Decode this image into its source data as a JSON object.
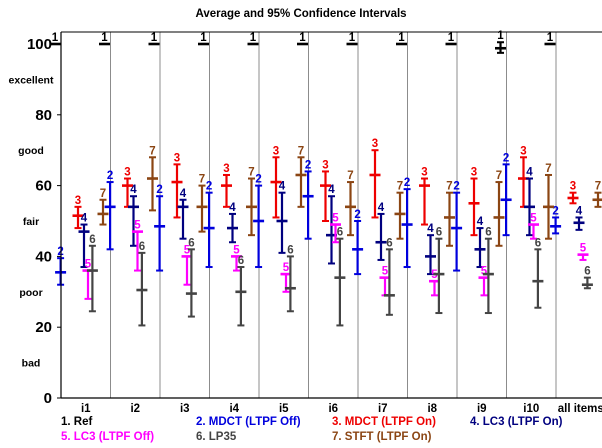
{
  "chart_data": {
    "type": "errorbar",
    "title": "Average and 95% Confidence Intervals",
    "xlabel": "",
    "ylabel": "",
    "ylim": [
      0,
      105
    ],
    "yticks": [
      0,
      20,
      40,
      60,
      80,
      100
    ],
    "quality_labels": [
      {
        "value": 10,
        "label": "bad"
      },
      {
        "value": 30,
        "label": "poor"
      },
      {
        "value": 50,
        "label": "fair"
      },
      {
        "value": 70,
        "label": "good"
      },
      {
        "value": 90,
        "label": "excellent"
      }
    ],
    "categories": [
      "i1",
      "i2",
      "i3",
      "i4",
      "i5",
      "i6",
      "i7",
      "i8",
      "i9",
      "i10",
      "all items"
    ],
    "grid": true,
    "legend_position": "bottom",
    "series": [
      {
        "id": "1",
        "name": "Ref",
        "color": "#000000",
        "mean": [
          100,
          100,
          100,
          100,
          100,
          100,
          100,
          100,
          100,
          98.8,
          100
        ],
        "lower": [
          100,
          100,
          100,
          100,
          100,
          100,
          100,
          100,
          100,
          97.5,
          100
        ],
        "upper": [
          100,
          100,
          100,
          100,
          100,
          100,
          100,
          100,
          100,
          100.5,
          100
        ]
      },
      {
        "id": "2",
        "name": "MDCT (LTPF Off)",
        "color": "#0000dd",
        "mean": [
          35.5,
          54,
          48.5,
          48,
          50,
          57,
          42,
          49,
          48,
          56,
          48.5
        ],
        "lower": [
          32,
          42,
          36,
          37,
          37,
          45,
          35,
          37,
          36,
          46,
          46.5
        ],
        "upper": [
          39.5,
          61,
          57,
          58,
          60,
          64,
          50,
          59,
          58,
          66,
          51
        ]
      },
      {
        "id": "3",
        "name": "MDCT (LTPF On)",
        "color": "#ee0000",
        "mean": [
          51.5,
          60,
          61,
          60,
          61,
          60,
          63,
          60,
          55,
          62,
          56.5
        ],
        "lower": [
          48,
          54,
          51,
          54,
          51,
          50,
          51,
          49,
          46,
          54,
          55
        ],
        "upper": [
          54,
          62,
          66,
          63,
          68,
          64,
          70,
          62,
          62,
          68,
          58
        ]
      },
      {
        "id": "4",
        "name": "LC3 (LTPF On)",
        "color": "#00007f",
        "mean": [
          47,
          54,
          54,
          48,
          50,
          46,
          44,
          40,
          42,
          54,
          49.5
        ],
        "lower": [
          37,
          43,
          45,
          44,
          41,
          38,
          39,
          35,
          37,
          46,
          47.5
        ],
        "upper": [
          49,
          57,
          56,
          52,
          58,
          57,
          52,
          46,
          48,
          62,
          51
        ]
      },
      {
        "id": "5",
        "name": "LC3 (LTPF Off)",
        "color": "#ff00ff",
        "mean": [
          36,
          47,
          40,
          40,
          35,
          49,
          34,
          33,
          34,
          49,
          40.5
        ],
        "lower": [
          28,
          36,
          32,
          36,
          30,
          44,
          29,
          29,
          29,
          45,
          39
        ]
      },
      {
        "id": "6",
        "name": "LP35",
        "color": "#444444",
        "mean": [
          36,
          30.5,
          29.5,
          30,
          31,
          34,
          29,
          35,
          35,
          33,
          32
        ],
        "lower": [
          24.5,
          20.5,
          23,
          20.5,
          24.5,
          20.5,
          23.5,
          24,
          24,
          25.5,
          31
        ],
        "upper": [
          43,
          41,
          42,
          37,
          40,
          45,
          42,
          45,
          45,
          42,
          34
        ]
      },
      {
        "id": "7",
        "name": "STFT (LTPF On)",
        "color": "#8b4513",
        "mean": [
          52,
          62,
          54,
          54,
          63,
          54,
          52,
          51,
          51,
          54,
          56
        ],
        "lower": [
          49,
          53,
          47,
          46,
          54,
          46,
          45,
          43,
          43,
          45,
          54
        ],
        "upper": [
          56,
          68,
          60,
          62,
          68,
          61,
          58,
          58,
          61,
          63,
          58
        ]
      }
    ]
  }
}
